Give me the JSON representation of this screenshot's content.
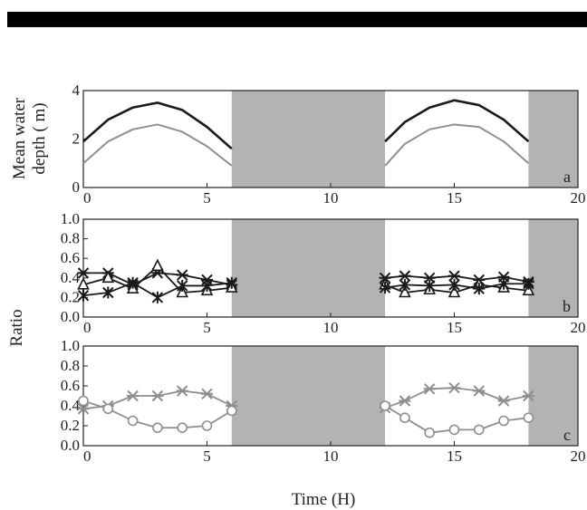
{
  "chart_data": {
    "type": "line",
    "xlabel": "Time (H)",
    "colors": {
      "black": "#1a1a1a",
      "gray": "#8f8f8f",
      "shade": "#b3b3b3",
      "header": "#000000"
    },
    "panels": [
      {
        "id": "a",
        "label": "a",
        "ylabel_lines": [
          "Mean water",
          "depth ( m)"
        ],
        "xlim": [
          0,
          20
        ],
        "ylim": [
          0,
          4
        ],
        "xticks": [
          0,
          5,
          10,
          15,
          20
        ],
        "yticks": [
          0,
          2,
          4
        ],
        "shaded_intervals": [
          [
            6,
            12.2
          ],
          [
            18,
            20
          ]
        ],
        "series": [
          {
            "style": "black",
            "marker": "none",
            "segments": [
              {
                "x": [
                  0,
                  1,
                  2,
                  3,
                  4,
                  5,
                  6
                ],
                "y": [
                  1.9,
                  2.8,
                  3.3,
                  3.5,
                  3.2,
                  2.5,
                  1.6
                ]
              },
              {
                "x": [
                  12.2,
                  13,
                  14,
                  15,
                  16,
                  17,
                  18
                ],
                "y": [
                  1.9,
                  2.7,
                  3.3,
                  3.6,
                  3.4,
                  2.8,
                  1.9
                ]
              }
            ]
          },
          {
            "style": "gray",
            "marker": "none",
            "segments": [
              {
                "x": [
                  0,
                  1,
                  2,
                  3,
                  4,
                  5,
                  6
                ],
                "y": [
                  1.0,
                  1.9,
                  2.4,
                  2.6,
                  2.3,
                  1.7,
                  0.9
                ]
              },
              {
                "x": [
                  12.2,
                  13,
                  14,
                  15,
                  16,
                  17,
                  18
                ],
                "y": [
                  0.9,
                  1.8,
                  2.4,
                  2.6,
                  2.5,
                  1.9,
                  1.0
                ]
              }
            ]
          }
        ]
      },
      {
        "id": "b",
        "label": "b",
        "ylabel_lines": [],
        "xlim": [
          0,
          20
        ],
        "ylim": [
          0,
          1
        ],
        "xticks": [
          0,
          5,
          10,
          15,
          20
        ],
        "yticks": [
          0,
          0.2,
          0.4,
          0.6,
          0.8,
          1.0
        ],
        "ytick_labels": [
          "0.0",
          "0.2",
          "0.4",
          "0.6",
          "0.8",
          "1.0"
        ],
        "shaded_intervals": [
          [
            6,
            12.2
          ],
          [
            18,
            20
          ]
        ],
        "series": [
          {
            "style": "black",
            "marker": "cross",
            "segments": [
              {
                "x": [
                  0,
                  1,
                  2,
                  3,
                  4,
                  5,
                  6
                ],
                "y": [
                  0.45,
                  0.45,
                  0.33,
                  0.45,
                  0.43,
                  0.38,
                  0.33
                ]
              },
              {
                "x": [
                  12.2,
                  13,
                  14,
                  15,
                  16,
                  17,
                  18
                ],
                "y": [
                  0.4,
                  0.42,
                  0.4,
                  0.42,
                  0.38,
                  0.41,
                  0.36
                ]
              }
            ]
          },
          {
            "style": "black",
            "marker": "triangle",
            "segments": [
              {
                "x": [
                  0,
                  1,
                  2,
                  3,
                  4,
                  5,
                  6
                ],
                "y": [
                  0.33,
                  0.4,
                  0.29,
                  0.52,
                  0.25,
                  0.27,
                  0.3
                ]
              },
              {
                "x": [
                  12.2,
                  13,
                  14,
                  15,
                  16,
                  17,
                  18
                ],
                "y": [
                  0.33,
                  0.25,
                  0.28,
                  0.25,
                  0.33,
                  0.3,
                  0.27
                ]
              }
            ]
          },
          {
            "style": "black",
            "marker": "star",
            "segments": [
              {
                "x": [
                  0,
                  1,
                  2,
                  3,
                  4,
                  5,
                  6
                ],
                "y": [
                  0.22,
                  0.25,
                  0.35,
                  0.2,
                  0.32,
                  0.32,
                  0.35
                ]
              },
              {
                "x": [
                  12.2,
                  13,
                  14,
                  15,
                  16,
                  17,
                  18
                ],
                "y": [
                  0.3,
                  0.33,
                  0.32,
                  0.33,
                  0.29,
                  0.34,
                  0.34
                ]
              }
            ]
          }
        ]
      },
      {
        "id": "c",
        "label": "c",
        "ylabel_lines": [],
        "xlim": [
          0,
          20
        ],
        "ylim": [
          0,
          1
        ],
        "xticks": [
          0,
          5,
          10,
          15,
          20
        ],
        "yticks": [
          0,
          0.2,
          0.4,
          0.6,
          0.8,
          1.0
        ],
        "ytick_labels": [
          "0.0",
          "0.2",
          "0.4",
          "0.6",
          "0.8",
          "1.0"
        ],
        "shaded_intervals": [
          [
            6,
            12.2
          ],
          [
            18,
            20
          ]
        ],
        "series": [
          {
            "style": "gray",
            "marker": "cross",
            "segments": [
              {
                "x": [
                  0,
                  1,
                  2,
                  3,
                  4,
                  5,
                  6
                ],
                "y": [
                  0.37,
                  0.4,
                  0.5,
                  0.5,
                  0.55,
                  0.52,
                  0.4
                ]
              },
              {
                "x": [
                  12.2,
                  13,
                  14,
                  15,
                  16,
                  17,
                  18
                ],
                "y": [
                  0.38,
                  0.45,
                  0.57,
                  0.58,
                  0.55,
                  0.45,
                  0.5
                ]
              }
            ]
          },
          {
            "style": "gray",
            "marker": "circle",
            "segments": [
              {
                "x": [
                  0,
                  1,
                  2,
                  3,
                  4,
                  5,
                  6
                ],
                "y": [
                  0.45,
                  0.37,
                  0.25,
                  0.18,
                  0.18,
                  0.2,
                  0.35
                ]
              },
              {
                "x": [
                  12.2,
                  13,
                  14,
                  15,
                  16,
                  17,
                  18
                ],
                "y": [
                  0.4,
                  0.28,
                  0.13,
                  0.16,
                  0.16,
                  0.25,
                  0.28
                ]
              }
            ]
          }
        ]
      }
    ],
    "shared_ylabel_bc": "Ratio"
  }
}
